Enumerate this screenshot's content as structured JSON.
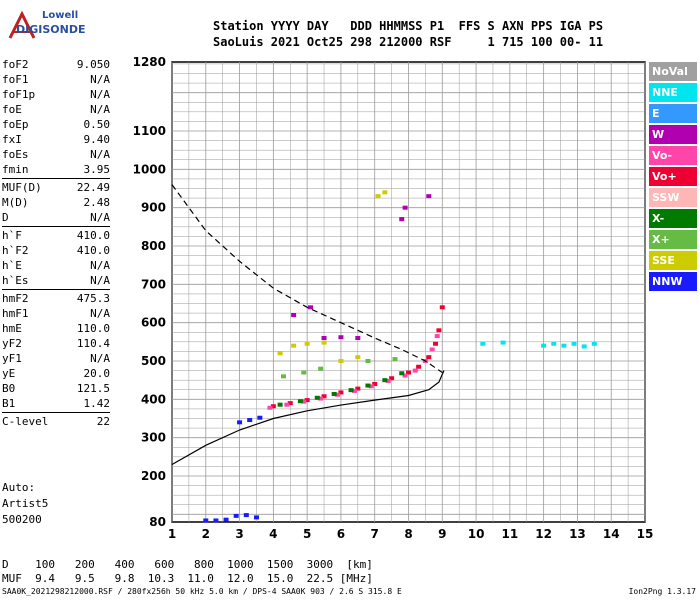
{
  "logo": {
    "line1": "Lowell",
    "line2": "DIGISONDE"
  },
  "header": {
    "line1": "Station YYYY DAY   DDD HHMMSS P1  FFS S AXN PPS IGA PS",
    "line2": "SaoLuis 2021 Oct25 298 212000 RSF     1 715 100 00- 11"
  },
  "params": [
    {
      "k": "foF2",
      "v": "9.050"
    },
    {
      "k": "foF1",
      "v": "N/A"
    },
    {
      "k": "foF1p",
      "v": "N/A"
    },
    {
      "k": "foE",
      "v": "N/A"
    },
    {
      "k": "foEp",
      "v": "0.50"
    },
    {
      "k": "fxI",
      "v": "9.40"
    },
    {
      "k": "foEs",
      "v": "N/A"
    },
    {
      "k": "fmin",
      "v": "3.95"
    },
    {
      "k": "MUF(D)",
      "v": "22.49"
    },
    {
      "k": "M(D)",
      "v": "2.48"
    },
    {
      "k": "D",
      "v": "N/A"
    },
    {
      "k": "h`F",
      "v": "410.0"
    },
    {
      "k": "h`F2",
      "v": "410.0"
    },
    {
      "k": "h`E",
      "v": "N/A"
    },
    {
      "k": "h`Es",
      "v": "N/A"
    },
    {
      "k": "hmF2",
      "v": "475.3"
    },
    {
      "k": "hmF1",
      "v": "N/A"
    },
    {
      "k": "hmE",
      "v": "110.0"
    },
    {
      "k": "yF2",
      "v": "110.4"
    },
    {
      "k": "yF1",
      "v": "N/A"
    },
    {
      "k": "yE",
      "v": "20.0"
    },
    {
      "k": "B0",
      "v": "121.5"
    },
    {
      "k": "B1",
      "v": "1.42"
    },
    {
      "k": "C-level",
      "v": "22"
    }
  ],
  "auto": {
    "line1": "Auto:",
    "line2": "Artist5",
    "line3": "500200"
  },
  "legend": [
    {
      "label": "NoVal",
      "color": "#a0a0a0"
    },
    {
      "label": "NNE",
      "color": "#00e5ee"
    },
    {
      "label": "E",
      "color": "#3399ff"
    },
    {
      "label": "W",
      "color": "#b000b0"
    },
    {
      "label": "Vo-",
      "color": "#ff44aa"
    },
    {
      "label": "Vo+",
      "color": "#ee0033"
    },
    {
      "label": "SSW",
      "color": "#ffb6b6"
    },
    {
      "label": "X-",
      "color": "#007a00"
    },
    {
      "label": "X+",
      "color": "#66bb44"
    },
    {
      "label": "SSE",
      "color": "#cccc00"
    },
    {
      "label": "NNW",
      "color": "#1a1aff"
    }
  ],
  "muf_table": {
    "d_label": "D",
    "d_values": [
      "100",
      "200",
      "400",
      "600",
      "800",
      "1000",
      "1500",
      "3000",
      "[km]"
    ],
    "muf_label": "MUF",
    "muf_values": [
      "9.4",
      "9.5",
      "9.8",
      "10.3",
      "11.0",
      "12.0",
      "15.0",
      "22.5",
      "[MHz]"
    ]
  },
  "footer": {
    "left": "SAA0K_2021298212000.RSF / 280fx256h 50 kHz 5.0 km / DPS-4 SAA0K 903 / 2.6 S 315.8 E",
    "right": "Ion2Png 1.3.17"
  },
  "chart_data": {
    "type": "scatter",
    "title": "",
    "xlabel": "",
    "ylabel": "",
    "xlim": [
      1,
      15
    ],
    "ylim": [
      80,
      1280
    ],
    "x_ticks": [
      "1",
      "2",
      "3",
      "4",
      "5",
      "6",
      "7",
      "8",
      "9",
      "10",
      "11",
      "12",
      "13",
      "14",
      "15"
    ],
    "y_ticks": [
      "80",
      "200",
      "300",
      "400",
      "500",
      "600",
      "700",
      "800",
      "900",
      "1000",
      "1100",
      "1280"
    ],
    "grid": true,
    "series": [
      {
        "name": "Vo+",
        "color": "#ee0033",
        "points": [
          [
            4.0,
            382
          ],
          [
            4.5,
            390
          ],
          [
            5.0,
            398
          ],
          [
            5.5,
            408
          ],
          [
            6.0,
            418
          ],
          [
            6.5,
            428
          ],
          [
            7.0,
            440
          ],
          [
            7.5,
            455
          ],
          [
            8.0,
            470
          ],
          [
            8.3,
            485
          ],
          [
            8.6,
            510
          ],
          [
            8.8,
            545
          ],
          [
            8.9,
            580
          ],
          [
            9.0,
            640
          ]
        ]
      },
      {
        "name": "Vo-",
        "color": "#ff44aa",
        "points": [
          [
            3.9,
            378
          ],
          [
            4.4,
            386
          ],
          [
            4.9,
            394
          ],
          [
            5.4,
            402
          ],
          [
            5.9,
            412
          ],
          [
            6.4,
            422
          ],
          [
            6.9,
            434
          ],
          [
            7.4,
            448
          ],
          [
            7.9,
            462
          ],
          [
            8.2,
            475
          ],
          [
            8.5,
            500
          ],
          [
            8.7,
            530
          ],
          [
            8.85,
            565
          ]
        ]
      },
      {
        "name": "X-",
        "color": "#007a00",
        "points": [
          [
            4.2,
            386
          ],
          [
            4.8,
            395
          ],
          [
            5.3,
            404
          ],
          [
            5.8,
            414
          ],
          [
            6.3,
            424
          ],
          [
            6.8,
            436
          ],
          [
            7.3,
            450
          ],
          [
            7.8,
            468
          ]
        ]
      },
      {
        "name": "NNE",
        "color": "#00e5ee",
        "points": [
          [
            12.0,
            540
          ],
          [
            12.3,
            545
          ],
          [
            12.6,
            540
          ],
          [
            12.9,
            545
          ],
          [
            13.2,
            538
          ],
          [
            13.5,
            545
          ],
          [
            10.2,
            545
          ],
          [
            10.8,
            548
          ]
        ]
      },
      {
        "name": "NNW",
        "color": "#1a1aff",
        "points": [
          [
            2.0,
            84
          ],
          [
            2.3,
            84
          ],
          [
            2.6,
            86
          ],
          [
            2.9,
            96
          ],
          [
            3.2,
            98
          ],
          [
            3.5,
            92
          ],
          [
            3.0,
            340
          ],
          [
            3.3,
            346
          ],
          [
            3.6,
            352
          ]
        ]
      },
      {
        "name": "W",
        "color": "#b000b0",
        "points": [
          [
            5.5,
            560
          ],
          [
            6.0,
            562
          ],
          [
            7.8,
            870
          ],
          [
            7.9,
            900
          ],
          [
            8.6,
            930
          ],
          [
            4.6,
            620
          ],
          [
            5.1,
            640
          ],
          [
            6.5,
            560
          ]
        ]
      },
      {
        "name": "SSE",
        "color": "#cccc00",
        "points": [
          [
            4.2,
            520
          ],
          [
            4.6,
            540
          ],
          [
            5.0,
            545
          ],
          [
            5.5,
            548
          ],
          [
            6.0,
            500
          ],
          [
            6.5,
            510
          ],
          [
            7.1,
            930
          ],
          [
            7.3,
            940
          ]
        ]
      },
      {
        "name": "X+",
        "color": "#66bb44",
        "points": [
          [
            4.3,
            460
          ],
          [
            4.9,
            470
          ],
          [
            5.4,
            480
          ],
          [
            6.8,
            500
          ],
          [
            7.6,
            505
          ]
        ]
      }
    ],
    "virtual_height_dashed": [
      [
        1.0,
        960
      ],
      [
        1.5,
        900
      ],
      [
        2.0,
        840
      ],
      [
        3.0,
        760
      ],
      [
        4.0,
        690
      ],
      [
        5.0,
        640
      ],
      [
        6.0,
        600
      ],
      [
        7.0,
        560
      ],
      [
        7.8,
        530
      ],
      [
        8.5,
        500
      ],
      [
        9.0,
        470
      ]
    ],
    "profile_solid": [
      [
        1.0,
        230
      ],
      [
        2.0,
        280
      ],
      [
        3.0,
        320
      ],
      [
        4.0,
        350
      ],
      [
        5.0,
        370
      ],
      [
        6.0,
        385
      ],
      [
        7.0,
        398
      ],
      [
        8.0,
        410
      ],
      [
        8.6,
        425
      ],
      [
        8.9,
        445
      ],
      [
        9.05,
        475.3
      ]
    ]
  }
}
